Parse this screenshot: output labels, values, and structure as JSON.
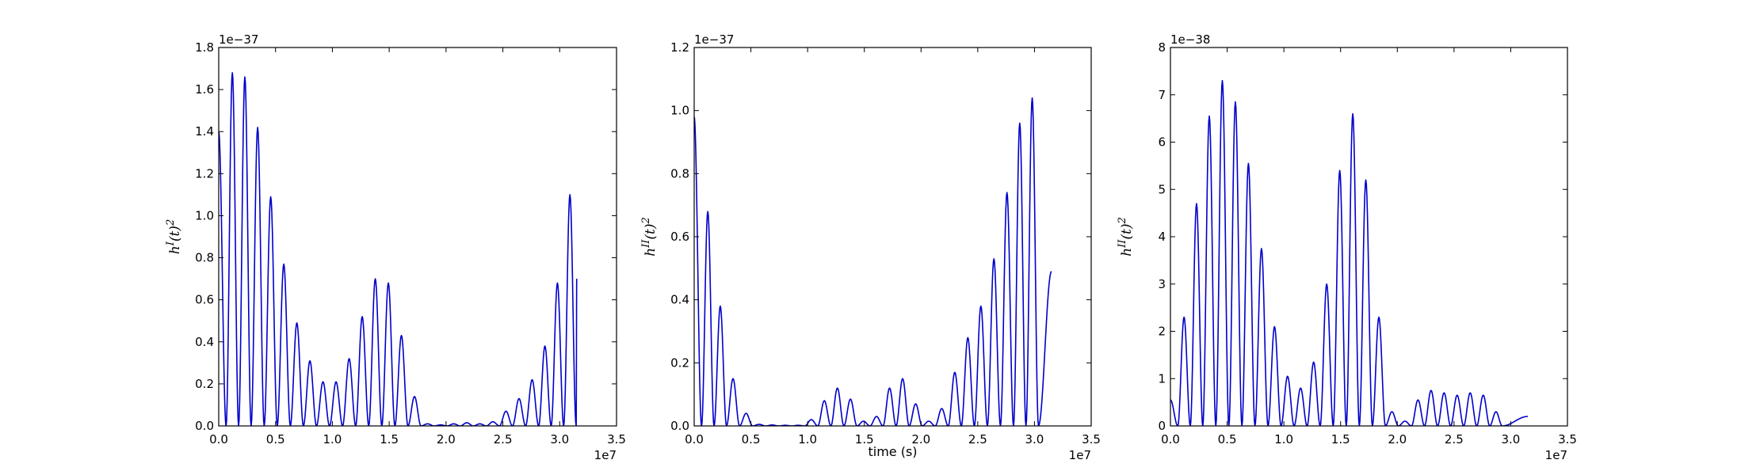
{
  "chart_data": [
    {
      "type": "line",
      "ylabel": "h^I(t)^2",
      "xlabel": "",
      "x_offset_label": "1e7",
      "y_offset_label": "1e−37",
      "xlim": [
        0.0,
        3.5
      ],
      "ylim": [
        0.0,
        1.8
      ],
      "xticks": [
        "0.0",
        "0.5",
        "1.0",
        "1.5",
        "2.0",
        "2.5",
        "3.0",
        "3.5"
      ],
      "yticks": [
        "0.0",
        "0.2",
        "0.4",
        "0.6",
        "0.8",
        "1.0",
        "1.2",
        "1.4",
        "1.6",
        "1.8"
      ],
      "grid": false,
      "line_color": "#0000cc",
      "series": [
        {
          "x_start": 0.0,
          "x_end": 3.15,
          "start_value": 1.4,
          "end_value": 0.7,
          "peaks": [
            [
              0.12,
              1.68
            ],
            [
              0.23,
              1.66
            ],
            [
              0.34,
              1.42
            ],
            [
              0.46,
              1.09
            ],
            [
              0.57,
              0.77
            ],
            [
              0.69,
              0.49
            ],
            [
              0.8,
              0.31
            ],
            [
              0.92,
              0.21
            ],
            [
              1.03,
              0.21
            ],
            [
              1.15,
              0.32
            ],
            [
              1.26,
              0.52
            ],
            [
              1.38,
              0.7
            ],
            [
              1.49,
              0.68
            ],
            [
              1.61,
              0.43
            ],
            [
              1.72,
              0.14
            ],
            [
              1.84,
              0.01
            ],
            [
              1.95,
              0.005
            ],
            [
              2.07,
              0.01
            ],
            [
              2.18,
              0.015
            ],
            [
              2.3,
              0.01
            ],
            [
              2.41,
              0.02
            ],
            [
              2.53,
              0.07
            ],
            [
              2.64,
              0.13
            ],
            [
              2.76,
              0.22
            ],
            [
              2.87,
              0.38
            ],
            [
              2.98,
              0.68
            ],
            [
              3.09,
              1.1
            ]
          ]
        }
      ]
    },
    {
      "type": "line",
      "ylabel": "h^II(t)^2",
      "xlabel": "time (s)",
      "x_offset_label": "1e7",
      "y_offset_label": "1e−37",
      "xlim": [
        0.0,
        3.5
      ],
      "ylim": [
        0.0,
        1.2
      ],
      "xticks": [
        "0.0",
        "0.5",
        "1.0",
        "1.5",
        "2.0",
        "2.5",
        "3.0",
        "3.5"
      ],
      "yticks": [
        "0.0",
        "0.2",
        "0.4",
        "0.6",
        "0.8",
        "1.0",
        "1.2"
      ],
      "grid": false,
      "line_color": "#0000cc",
      "series": [
        {
          "x_start": 0.0,
          "x_end": 3.15,
          "start_value": 0.98,
          "end_value": 0.49,
          "peaks": [
            [
              0.12,
              0.68
            ],
            [
              0.23,
              0.38
            ],
            [
              0.34,
              0.15
            ],
            [
              0.46,
              0.04
            ],
            [
              0.57,
              0.005
            ],
            [
              0.69,
              0.003
            ],
            [
              0.8,
              0.002
            ],
            [
              0.92,
              0.002
            ],
            [
              1.03,
              0.02
            ],
            [
              1.15,
              0.08
            ],
            [
              1.26,
              0.12
            ],
            [
              1.38,
              0.085
            ],
            [
              1.49,
              0.015
            ],
            [
              1.61,
              0.03
            ],
            [
              1.72,
              0.12
            ],
            [
              1.84,
              0.15
            ],
            [
              1.95,
              0.07
            ],
            [
              2.07,
              0.015
            ],
            [
              2.18,
              0.055
            ],
            [
              2.3,
              0.17
            ],
            [
              2.41,
              0.28
            ],
            [
              2.53,
              0.38
            ],
            [
              2.64,
              0.53
            ],
            [
              2.76,
              0.74
            ],
            [
              2.87,
              0.96
            ],
            [
              2.98,
              1.04
            ]
          ]
        }
      ]
    },
    {
      "type": "line",
      "ylabel": "h^II(t)^2",
      "xlabel": "",
      "x_offset_label": "1e7",
      "y_offset_label": "1e−38",
      "xlim": [
        0.0,
        3.5
      ],
      "ylim": [
        0.0,
        8.0
      ],
      "xticks": [
        "0.0",
        "0.5",
        "1.0",
        "1.5",
        "2.0",
        "2.5",
        "3.0",
        "3.5"
      ],
      "yticks": [
        "0",
        "1",
        "2",
        "3",
        "4",
        "5",
        "6",
        "7",
        "8"
      ],
      "grid": false,
      "line_color": "#0000cc",
      "series": [
        {
          "x_start": 0.0,
          "x_end": 3.15,
          "start_value": 0.55,
          "end_value": 0.2,
          "peaks": [
            [
              0.12,
              2.3
            ],
            [
              0.23,
              4.7
            ],
            [
              0.34,
              6.55
            ],
            [
              0.46,
              7.3
            ],
            [
              0.57,
              6.85
            ],
            [
              0.69,
              5.55
            ],
            [
              0.8,
              3.75
            ],
            [
              0.92,
              2.1
            ],
            [
              1.03,
              1.05
            ],
            [
              1.15,
              0.8
            ],
            [
              1.26,
              1.35
            ],
            [
              1.38,
              3.0
            ],
            [
              1.49,
              5.4
            ],
            [
              1.61,
              6.6
            ],
            [
              1.72,
              5.2
            ],
            [
              1.84,
              2.3
            ],
            [
              1.95,
              0.3
            ],
            [
              2.07,
              0.1
            ],
            [
              2.18,
              0.55
            ],
            [
              2.3,
              0.75
            ],
            [
              2.41,
              0.7
            ],
            [
              2.53,
              0.65
            ],
            [
              2.64,
              0.7
            ],
            [
              2.76,
              0.65
            ],
            [
              2.87,
              0.3
            ]
          ]
        }
      ]
    }
  ]
}
